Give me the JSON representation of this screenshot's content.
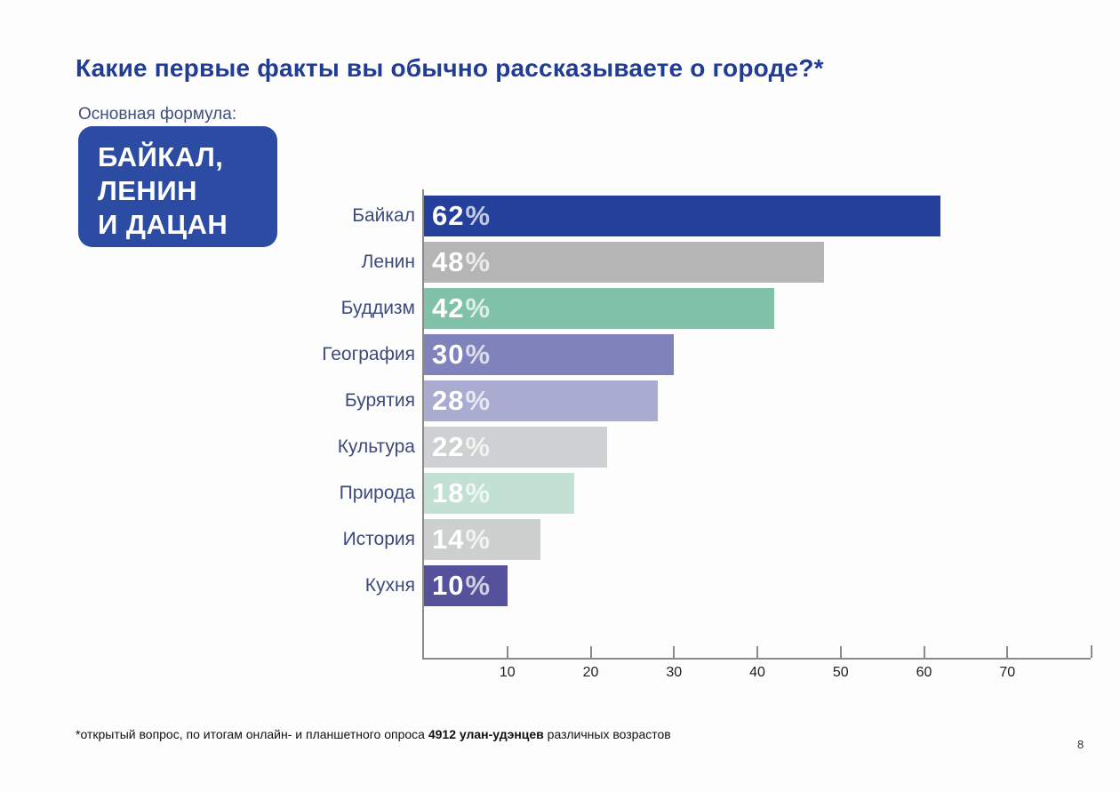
{
  "slide": {
    "title": "Какие первые факты вы обычно рассказываете о городе?*",
    "page_number": "8"
  },
  "formula": {
    "label": "Основная формула:",
    "lines": [
      "БАЙКАЛ,",
      "ЛЕНИН",
      "И ДАЦАН"
    ]
  },
  "footnote": {
    "prefix": "*открытый вопрос, по итогам онлайн- и планшетного опроса ",
    "bold": "4912 улан-удэнцев",
    "suffix": " различных возрастов"
  },
  "chart_data": {
    "type": "bar",
    "orientation": "horizontal",
    "title": "",
    "categories": [
      "Байкал",
      "Ленин",
      "Буддизм",
      "География",
      "Бурятия",
      "Культура",
      "Природа",
      "История",
      "Кухня"
    ],
    "values": [
      62,
      48,
      42,
      30,
      28,
      22,
      18,
      14,
      10
    ],
    "value_labels": [
      "62%",
      "48%",
      "42%",
      "30%",
      "28%",
      "22%",
      "18%",
      "14%",
      "10%"
    ],
    "value_suffix": "%",
    "bar_colors": [
      "#24409a",
      "#b5b5b5",
      "#80c2a8",
      "#8083bb",
      "#a9abd1",
      "#ced1d1",
      "#c2e0d3",
      "#ced0d0",
      "#55519b"
    ],
    "xlim": [
      0,
      80
    ],
    "x_ticks": [
      10,
      20,
      30,
      40,
      50,
      60,
      70
    ],
    "grid": false,
    "legend": false,
    "value_label_color": "#ffffff",
    "category_label_color": "#3c4b79"
  },
  "colors": {
    "title": "#203c94",
    "formula_label": "#41507a",
    "formula_box": "#2c4ba3",
    "axis": "#8a8a8a",
    "background": "#fdfdfd"
  }
}
